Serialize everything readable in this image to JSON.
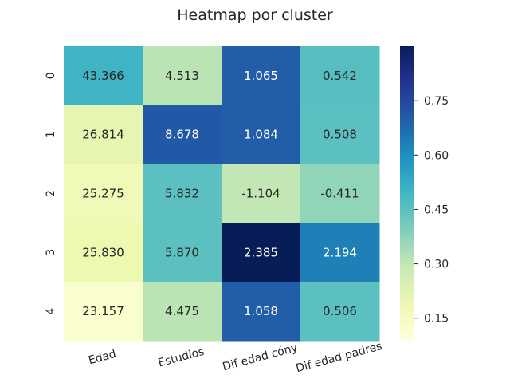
{
  "chart_data": {
    "type": "heatmap",
    "title": "Heatmap por cluster",
    "xlabel": "",
    "ylabel": "",
    "columns": [
      "Edad",
      "Estudios",
      "Dif edad cóny",
      "Dif edad padres"
    ],
    "rows": [
      "0",
      "1",
      "2",
      "3",
      "4"
    ],
    "annotations": [
      [
        "43.366",
        "4.513",
        "1.065",
        "0.542"
      ],
      [
        "26.814",
        "8.678",
        "1.084",
        "0.508"
      ],
      [
        "25.275",
        "5.832",
        "-1.104",
        "-0.411"
      ],
      [
        "25.830",
        "5.870",
        "2.385",
        "2.194"
      ],
      [
        "23.157",
        "4.475",
        "1.058",
        "0.506"
      ]
    ],
    "color_values": [
      [
        0.5,
        0.31,
        0.7,
        0.46
      ],
      [
        0.21,
        0.71,
        0.7,
        0.45
      ],
      [
        0.17,
        0.45,
        0.3,
        0.37
      ],
      [
        0.19,
        0.45,
        0.9,
        0.63
      ],
      [
        0.12,
        0.31,
        0.7,
        0.45
      ]
    ],
    "colorbar": {
      "colormap": "YlGnBu",
      "range": [
        0.09,
        0.9
      ],
      "ticks": [
        0.15,
        0.3,
        0.45,
        0.6,
        0.75
      ],
      "tick_labels": [
        "0.15",
        "0.30",
        "0.45",
        "0.60",
        "0.75"
      ]
    },
    "grid": false,
    "legend": "colorbar-right"
  }
}
